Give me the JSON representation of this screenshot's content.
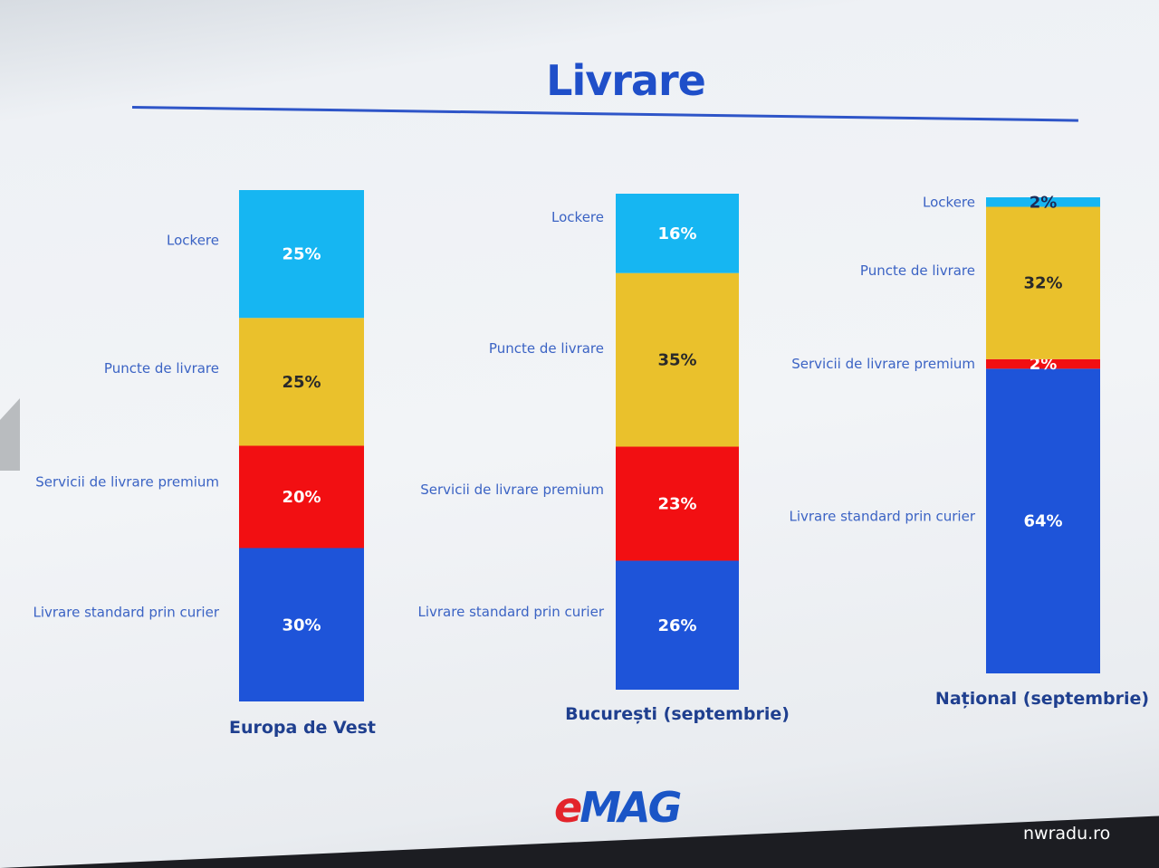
{
  "chart_data": {
    "type": "bar",
    "stacked": true,
    "title": "Livrare",
    "categories": [
      "Europa de Vest",
      "București (septembrie)",
      "Național (septembrie)"
    ],
    "series": [
      {
        "name": "Livrare standard prin curier",
        "color": "#1e54d9",
        "label_color": "#ffffff",
        "values": [
          30,
          26,
          64
        ]
      },
      {
        "name": "Servicii de livrare premium",
        "color": "#f20f12",
        "label_color": "#ffffff",
        "values": [
          20,
          23,
          2
        ]
      },
      {
        "name": "Puncte de livrare",
        "color": "#eac12c",
        "label_color": "#2a2a2a",
        "values": [
          25,
          35,
          32
        ]
      },
      {
        "name": "Lockere",
        "color": "#16b6f2",
        "label_color": "#ffffff",
        "values": [
          25,
          16,
          2
        ]
      }
    ],
    "data_labels": [
      [
        "30%",
        "20%",
        "25%",
        "25%"
      ],
      [
        "26%",
        "23%",
        "35%",
        "16%"
      ],
      [
        "64%",
        "2%",
        "32%",
        "2%"
      ]
    ],
    "legend": "none",
    "grid": false
  },
  "branding": {
    "logo_e": "e",
    "logo_rest": "MAG"
  },
  "watermark": "nwradu.ro"
}
